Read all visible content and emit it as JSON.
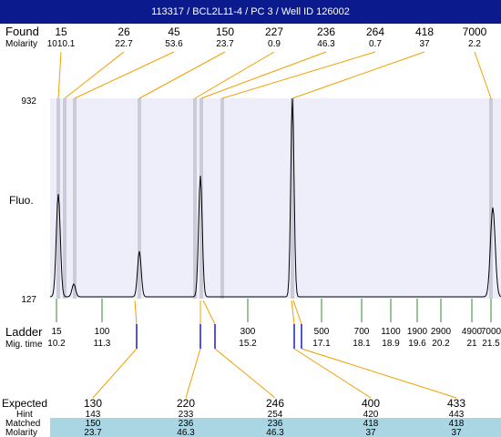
{
  "header": {
    "title": "113317 / BCL2L11-4 / PC 3 / Well ID 126002"
  },
  "labels": {
    "found": "Found",
    "molarity": "Molarity",
    "fluo": "Fluo.",
    "ladder": "Ladder",
    "mig_time": "Mig. time",
    "expected": "Expected",
    "hint": "Hint",
    "matched": "Matched",
    "molarity_bottom": "Molarity"
  },
  "colors": {
    "header_bg": "#0b1a8c",
    "plot_bg": "#eeeefb",
    "band": "#cacad8",
    "connector": "#f0a000",
    "ladder_tick": "#2e8b2e",
    "expected_tick": "#1a1acc",
    "table_bg": "#a9d6e2",
    "trace": "#000000"
  },
  "chart_data": {
    "type": "line",
    "title": "113317 / BCL2L11-4 / PC 3 / Well ID 126002",
    "ylabel": "Fluo.",
    "y_ticks": [
      "932",
      "127"
    ],
    "ylim": [
      127,
      932
    ],
    "found": [
      {
        "size": "15",
        "molarity": "1010.1",
        "peak_idx": 0
      },
      {
        "size": "26",
        "molarity": "22.7",
        "peak_idx": 1
      },
      {
        "size": "45",
        "molarity": "53.6",
        "peak_idx": 2
      },
      {
        "size": "150",
        "molarity": "23.7",
        "peak_idx": 3
      },
      {
        "size": "227",
        "molarity": "0.9",
        "peak_idx": 4
      },
      {
        "size": "236",
        "molarity": "46.3",
        "peak_idx": 5
      },
      {
        "size": "264",
        "molarity": "0.7",
        "peak_idx": 6
      },
      {
        "size": "418",
        "molarity": "37",
        "peak_idx": 7
      },
      {
        "size": "7000",
        "molarity": "2.2",
        "peak_idx": 8
      }
    ],
    "ladder": [
      {
        "size": "15",
        "mig_time": "10.2"
      },
      {
        "size": "100",
        "mig_time": "11.3"
      },
      {
        "size": "300",
        "mig_time": "15.2"
      },
      {
        "size": "500",
        "mig_time": "17.1"
      },
      {
        "size": "700",
        "mig_time": "18.1"
      },
      {
        "size": "1100",
        "mig_time": "18.9"
      },
      {
        "size": "1900",
        "mig_time": "19.6"
      },
      {
        "size": "2900",
        "mig_time": "20.2"
      },
      {
        "size": "4900",
        "mig_time": "21"
      },
      {
        "size": "7000",
        "mig_time": "21.5"
      }
    ],
    "expected": [
      {
        "size": "130",
        "hint": "143",
        "matched": "150",
        "molarity": "23.7"
      },
      {
        "size": "220",
        "hint": "233",
        "matched": "236",
        "molarity": "46.3"
      },
      {
        "size": "246",
        "hint": "254",
        "matched": "236",
        "molarity": "46.3"
      },
      {
        "size": "400",
        "hint": "420",
        "matched": "418",
        "molarity": "37"
      },
      {
        "size": "433",
        "hint": "443",
        "matched": "418",
        "molarity": "37"
      }
    ]
  }
}
